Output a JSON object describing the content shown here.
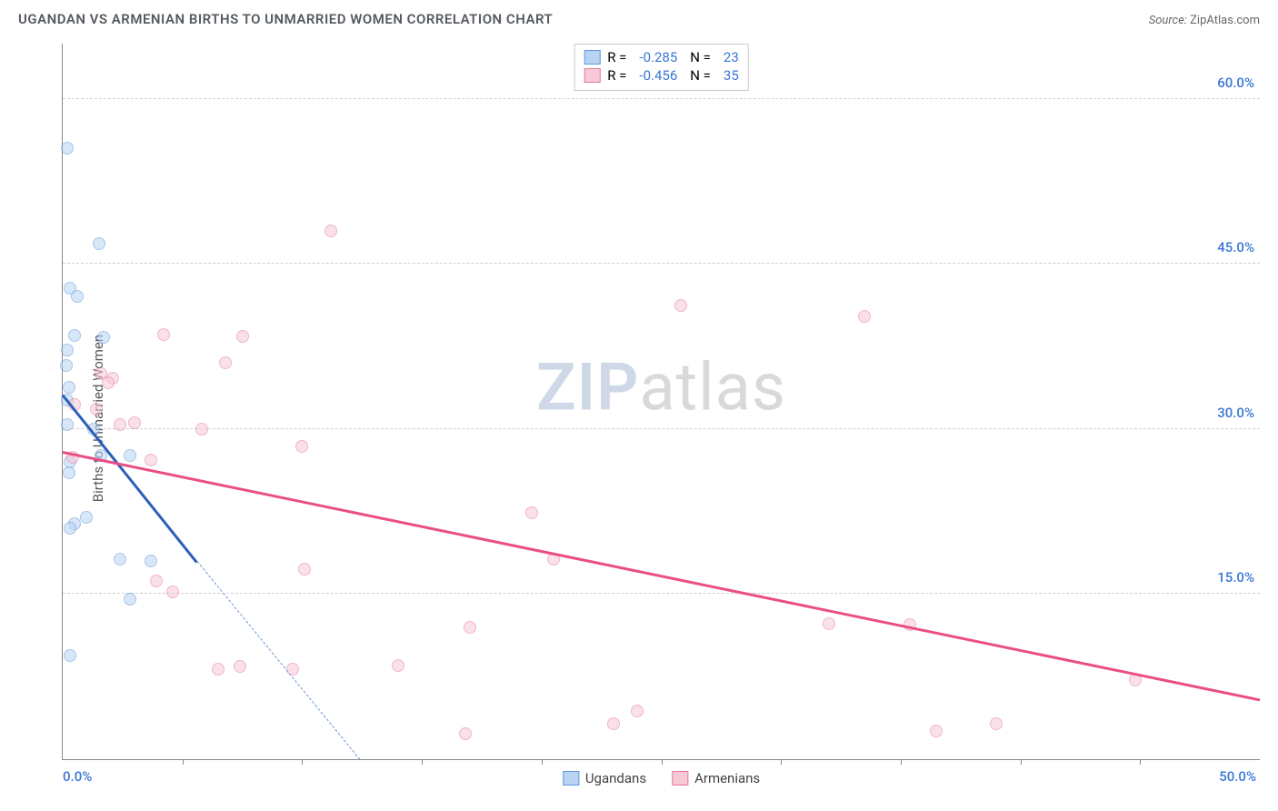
{
  "header": {
    "title": "UGANDAN VS ARMENIAN BIRTHS TO UNMARRIED WOMEN CORRELATION CHART",
    "source_label": "Source:",
    "source_value": "ZipAtlas.com"
  },
  "chart": {
    "type": "scatter",
    "ylabel": "Births to Unmarried Women",
    "background_color": "#ffffff",
    "grid_color": "#cfcfcf",
    "axis_color": "#888888",
    "text_color": "#555a60",
    "value_color": "#3a77d6",
    "xlim": [
      0,
      50
    ],
    "ylim": [
      0,
      65
    ],
    "y_ticks": [
      15,
      30,
      45,
      60
    ],
    "y_tick_labels": [
      "15.0%",
      "30.0%",
      "45.0%",
      "60.0%"
    ],
    "x_minor_ticks": [
      5,
      10,
      15,
      20,
      25,
      30,
      35,
      40,
      45
    ],
    "x_axis_labels": [
      {
        "pos": 0,
        "text": "0.0%"
      },
      {
        "pos": 50,
        "text": "50.0%"
      }
    ],
    "marker_radius": 7,
    "marker_stroke_width": 1.2,
    "series": [
      {
        "name": "Ugandans",
        "fill": "#b9d4f2",
        "stroke": "#5f98db",
        "fill_opacity": 0.55,
        "r": -0.285,
        "n": 23,
        "trend": {
          "x1": 0,
          "y1": 33.2,
          "x2": 5.6,
          "y2": 18.0,
          "color": "#2c5fb8"
        },
        "trend_ext": {
          "x1": 5.6,
          "y1": 18.0,
          "x2": 12.4,
          "y2": 0.0,
          "color": "#6d95d8"
        },
        "points": [
          [
            0.2,
            55.5
          ],
          [
            1.5,
            46.8
          ],
          [
            0.3,
            42.8
          ],
          [
            0.6,
            42.0
          ],
          [
            0.5,
            38.5
          ],
          [
            0.2,
            37.2
          ],
          [
            0.15,
            35.8
          ],
          [
            0.25,
            33.8
          ],
          [
            0.2,
            32.6
          ],
          [
            1.7,
            38.3
          ],
          [
            0.2,
            30.4
          ],
          [
            1.3,
            30.0
          ],
          [
            1.6,
            27.6
          ],
          [
            2.8,
            27.6
          ],
          [
            0.3,
            27.0
          ],
          [
            0.25,
            26.0
          ],
          [
            1.0,
            22.0
          ],
          [
            0.5,
            21.4
          ],
          [
            0.3,
            21.0
          ],
          [
            2.4,
            18.2
          ],
          [
            3.7,
            18.0
          ],
          [
            2.8,
            14.5
          ],
          [
            0.3,
            9.4
          ]
        ]
      },
      {
        "name": "Armenians",
        "fill": "#f7c9d6",
        "stroke": "#e47a9a",
        "fill_opacity": 0.55,
        "r": -0.456,
        "n": 35,
        "trend": {
          "x1": 0,
          "y1": 28.0,
          "x2": 50,
          "y2": 5.5,
          "color": "#e94e87"
        },
        "points": [
          [
            11.2,
            48.0
          ],
          [
            4.2,
            38.6
          ],
          [
            7.5,
            38.4
          ],
          [
            1.6,
            35.0
          ],
          [
            2.1,
            34.6
          ],
          [
            1.9,
            34.2
          ],
          [
            6.8,
            36.0
          ],
          [
            0.5,
            32.2
          ],
          [
            1.4,
            31.8
          ],
          [
            3.0,
            30.6
          ],
          [
            2.4,
            30.4
          ],
          [
            5.8,
            30.0
          ],
          [
            10.0,
            28.4
          ],
          [
            3.7,
            27.2
          ],
          [
            0.4,
            27.4
          ],
          [
            19.6,
            22.4
          ],
          [
            3.9,
            16.2
          ],
          [
            10.1,
            17.3
          ],
          [
            4.6,
            15.2
          ],
          [
            6.5,
            8.2
          ],
          [
            7.4,
            8.4
          ],
          [
            9.6,
            8.2
          ],
          [
            14.0,
            8.5
          ],
          [
            17.0,
            12.0
          ],
          [
            16.8,
            2.3
          ],
          [
            23.0,
            3.2
          ],
          [
            25.8,
            41.2
          ],
          [
            33.5,
            40.2
          ],
          [
            32.0,
            12.3
          ],
          [
            35.4,
            12.2
          ],
          [
            36.5,
            2.6
          ],
          [
            39.0,
            3.2
          ],
          [
            44.8,
            7.2
          ],
          [
            24.0,
            4.4
          ],
          [
            20.5,
            18.2
          ]
        ]
      }
    ],
    "stats_box": {
      "r_label": "R =",
      "n_label": "N ="
    },
    "legend": {
      "items": [
        "Ugandans",
        "Armenians"
      ]
    },
    "watermark": {
      "zip": "ZIP",
      "atlas": "atlas",
      "zip_color": "#cfd8e6",
      "atlas_color": "#d9d9d9"
    }
  }
}
